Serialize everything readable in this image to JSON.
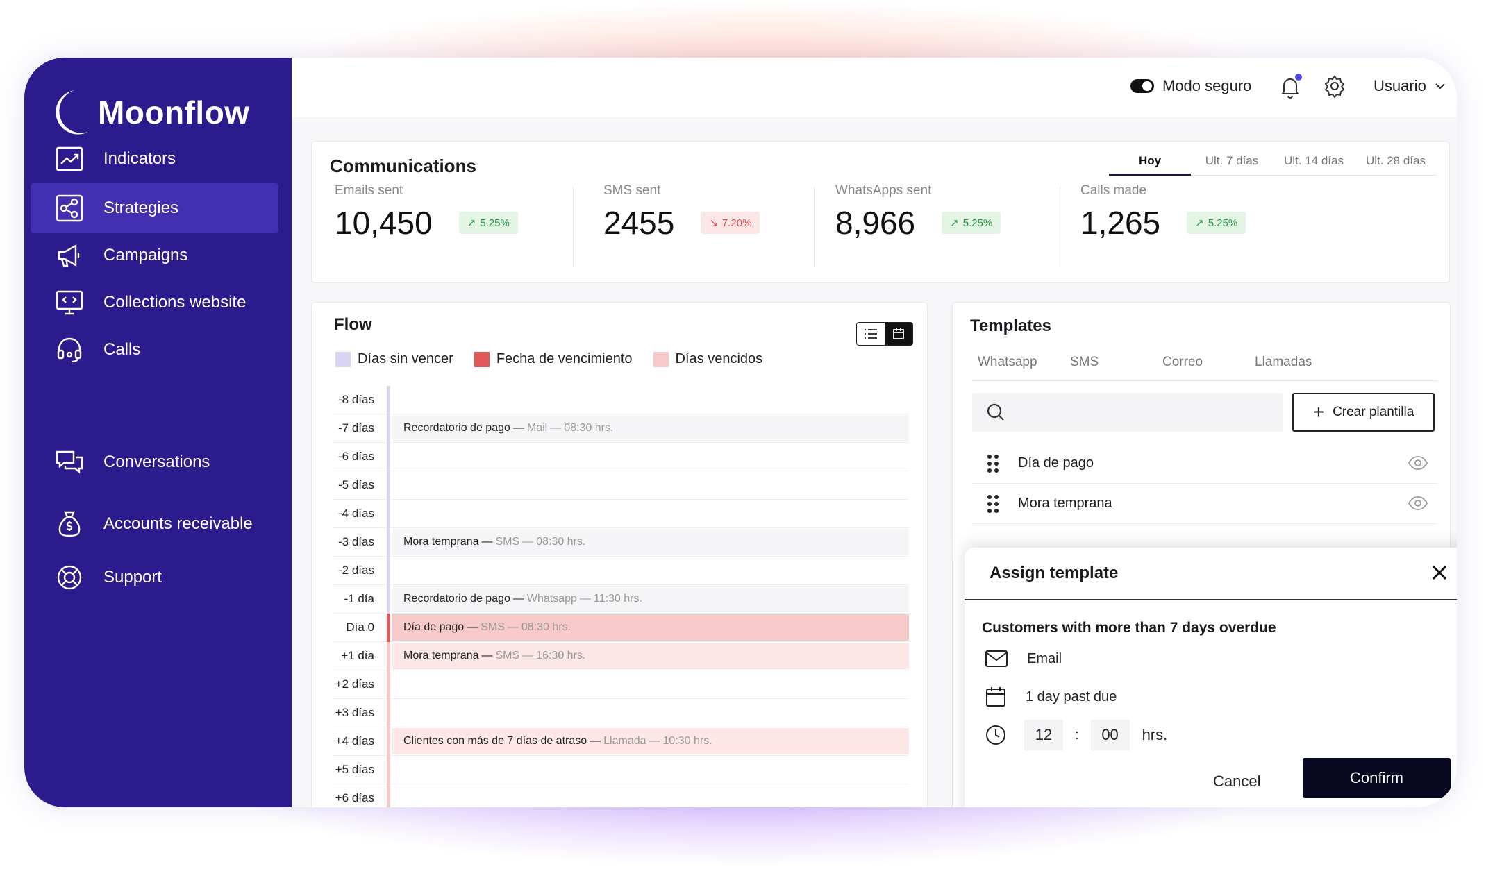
{
  "app": {
    "name": "Moonflow"
  },
  "sidebar": {
    "items": [
      {
        "label": "Indicators",
        "icon": "chart-line-icon"
      },
      {
        "label": "Strategies",
        "icon": "share-nodes-icon",
        "active": true
      },
      {
        "label": "Campaigns",
        "icon": "megaphone-icon"
      },
      {
        "label": "Collections website",
        "icon": "monitor-code-icon"
      },
      {
        "label": "Calls",
        "icon": "headset-icon"
      },
      {
        "label": "Conversations",
        "icon": "chat-bubbles-icon"
      },
      {
        "label": "Accounts receivable",
        "icon": "money-bag-icon"
      },
      {
        "label": "Support",
        "icon": "lifebuoy-icon"
      }
    ]
  },
  "topbar": {
    "safe_mode_label": "Modo seguro",
    "safe_mode_on": true,
    "user_label": "Usuario"
  },
  "communications": {
    "title": "Communications",
    "periods": [
      "Hoy",
      "Ult. 7 días",
      "Ult. 14 días",
      "Ult. 28 días"
    ],
    "selected_period": "Hoy",
    "stats": [
      {
        "label": "Emails sent",
        "value": "10,450",
        "change": "5.25%",
        "trend": "up"
      },
      {
        "label": "SMS sent",
        "value": "2455",
        "change": "7.20%",
        "trend": "down"
      },
      {
        "label": "WhatsApps sent",
        "value": "8,966",
        "change": "5.25%",
        "trend": "up"
      },
      {
        "label": "Calls made",
        "value": "1,265",
        "change": "5.25%",
        "trend": "up"
      }
    ]
  },
  "flow": {
    "title": "Flow",
    "legend": [
      {
        "label": "Días sin vencer",
        "color": "#d9d4f0"
      },
      {
        "label": "Fecha de vencimiento",
        "color": "#e05a5a"
      },
      {
        "label": "Días vencidos",
        "color": "#f7c9c9"
      }
    ],
    "rows": [
      {
        "day": "-8 días",
        "zone": "pre",
        "event": null
      },
      {
        "day": "-7 días",
        "zone": "pre",
        "event": {
          "name": "Recordatorio de pago",
          "channel": "Mail",
          "time": "08:30 hrs."
        }
      },
      {
        "day": "-6 días",
        "zone": "pre",
        "event": null
      },
      {
        "day": "-5 días",
        "zone": "pre",
        "event": null
      },
      {
        "day": "-4 días",
        "zone": "pre",
        "event": null
      },
      {
        "day": "-3 días",
        "zone": "pre",
        "event": {
          "name": "Mora temprana",
          "channel": "SMS",
          "time": "08:30 hrs."
        }
      },
      {
        "day": "-2 días",
        "zone": "pre",
        "event": null
      },
      {
        "day": "-1 día",
        "zone": "pre",
        "event": {
          "name": "Recordatorio de pago",
          "channel": "Whatsapp",
          "time": "11:30 hrs."
        }
      },
      {
        "day": "Día 0",
        "zone": "due",
        "event": {
          "name": "Día de pago",
          "channel": "SMS",
          "time": "08:30 hrs."
        }
      },
      {
        "day": "+1 día",
        "zone": "over",
        "event": {
          "name": "Mora temprana",
          "channel": "SMS",
          "time": "16:30 hrs."
        }
      },
      {
        "day": "+2 días",
        "zone": "over",
        "event": null
      },
      {
        "day": "+3 días",
        "zone": "over",
        "event": null
      },
      {
        "day": "+4 días",
        "zone": "over",
        "event": {
          "name": "Clientes con más de 7 días de atraso",
          "channel": "Llamada",
          "time": "10:30 hrs."
        }
      },
      {
        "day": "+5 días",
        "zone": "over",
        "event": null
      },
      {
        "day": "+6 días",
        "zone": "over",
        "event": null
      }
    ]
  },
  "templates": {
    "title": "Templates",
    "tabs": [
      "Whatsapp",
      "SMS",
      "Correo",
      "Llamadas"
    ],
    "search_placeholder": "",
    "new_button": "Crear plantilla",
    "items": [
      "Día de pago",
      "Mora temprana"
    ]
  },
  "modal": {
    "title": "Assign template",
    "subtitle": "Customers with more than 7 days overdue",
    "channel": "Email",
    "schedule": "1 day past due",
    "hour": "12",
    "minute": "00",
    "time_unit": "hrs.",
    "cancel_label": "Cancel",
    "confirm_label": "Confirm"
  }
}
